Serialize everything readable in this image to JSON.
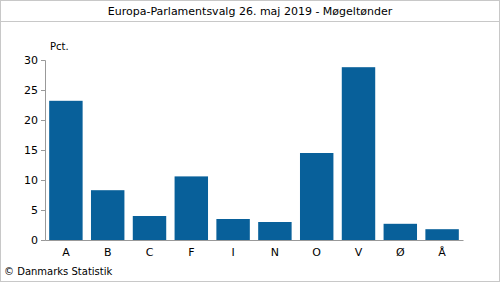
{
  "chart_data": {
    "type": "bar",
    "title": "Europa-Parlamentsvalg 26. maj 2019 - Møgeltønder",
    "ylabel": "Pct.",
    "annotations": [
      "© Danmarks Statistik"
    ],
    "categories": [
      "A",
      "B",
      "C",
      "F",
      "I",
      "N",
      "O",
      "V",
      "Ø",
      "Å"
    ],
    "values": [
      23.2,
      8.3,
      4.0,
      10.6,
      3.5,
      3.0,
      14.5,
      28.8,
      2.7,
      1.8
    ],
    "color": "#08609a",
    "ylim": [
      0,
      30
    ],
    "yticks": [
      0,
      5,
      10,
      15,
      20,
      25,
      30
    ],
    "grid": false
  }
}
